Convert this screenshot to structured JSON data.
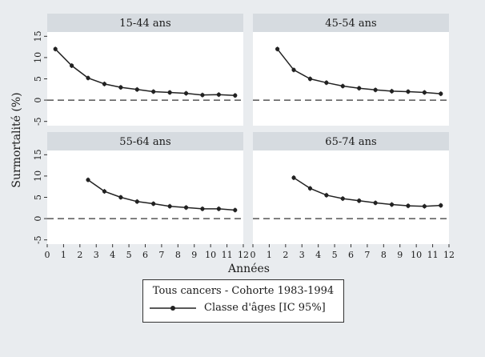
{
  "chart_data": {
    "type": "line",
    "ylabel": "Surmortalité (%)",
    "xlabel": "Années",
    "xlim": [
      0,
      12
    ],
    "ylim": [
      -6,
      16
    ],
    "xticks": [
      "0",
      "1",
      "2",
      "3",
      "4",
      "5",
      "6",
      "7",
      "8",
      "9",
      "10",
      "11",
      "12"
    ],
    "yticks": [
      "-5",
      "0",
      "5",
      "10",
      "15"
    ],
    "reference_line_y": 0,
    "grid": false,
    "legend": {
      "title": "Tous cancers - Cohorte 1983-1994",
      "label": "Classe d'âges [IC 95%]",
      "position": "bottom"
    },
    "panels": [
      {
        "title": "15-44 ans",
        "x": [
          0.5,
          1.5,
          2.5,
          3.5,
          4.5,
          5.5,
          6.5,
          7.5,
          8.5,
          9.5,
          10.5,
          11.5
        ],
        "y": [
          12.0,
          8.1,
          5.2,
          3.8,
          3.0,
          2.5,
          2.0,
          1.8,
          1.6,
          1.2,
          1.3,
          1.1
        ]
      },
      {
        "title": "45-54 ans",
        "x": [
          1.5,
          2.5,
          3.5,
          4.5,
          5.5,
          6.5,
          7.5,
          8.5,
          9.5,
          10.5,
          11.5
        ],
        "y": [
          12.0,
          7.1,
          5.0,
          4.1,
          3.3,
          2.8,
          2.4,
          2.1,
          2.0,
          1.8,
          1.5
        ]
      },
      {
        "title": "55-64 ans",
        "x": [
          2.5,
          3.5,
          4.5,
          5.5,
          6.5,
          7.5,
          8.5,
          9.5,
          10.5,
          11.5
        ],
        "y": [
          9.1,
          6.4,
          5.0,
          4.0,
          3.5,
          2.9,
          2.6,
          2.3,
          2.3,
          2.0
        ]
      },
      {
        "title": "65-74 ans",
        "x": [
          2.5,
          3.5,
          4.5,
          5.5,
          6.5,
          7.5,
          8.5,
          9.5,
          10.5,
          11.5
        ],
        "y": [
          9.6,
          7.1,
          5.5,
          4.7,
          4.2,
          3.7,
          3.3,
          3.0,
          2.9,
          3.1
        ]
      }
    ]
  }
}
